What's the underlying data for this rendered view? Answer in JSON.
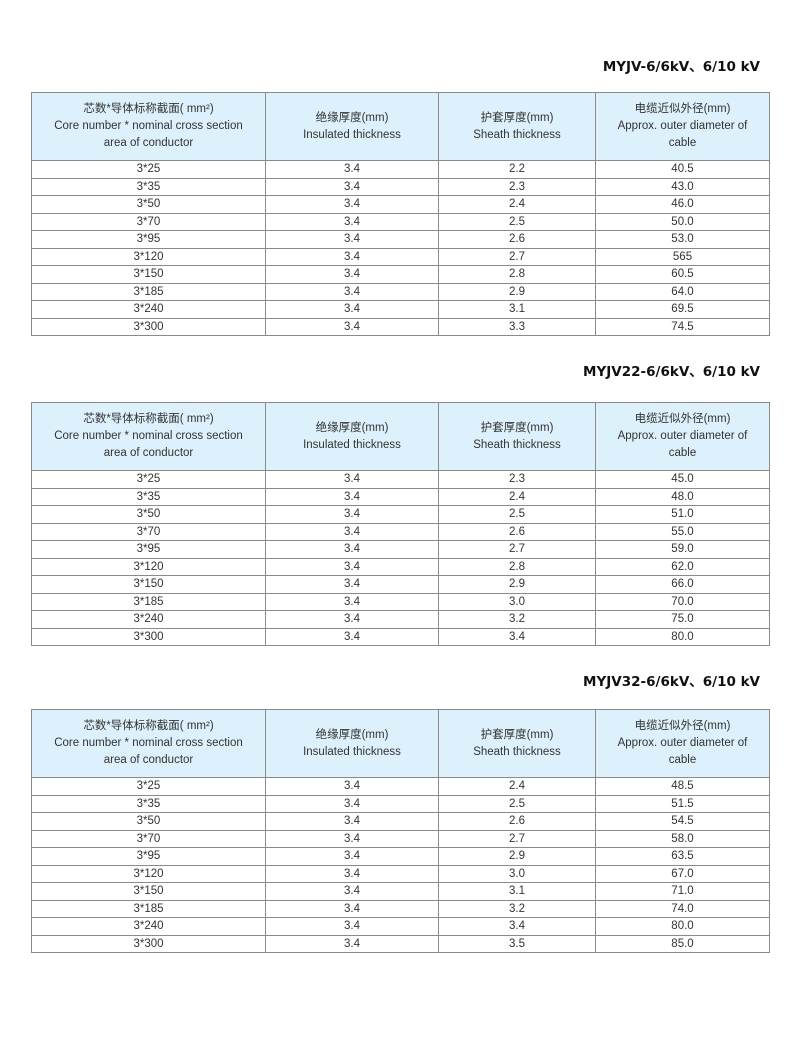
{
  "header_cells": [
    [
      "芯数*导体标称截面( mm²)",
      "Core number * nominal cross section",
      "area of conductor"
    ],
    [
      "绝缘厚度(mm)",
      "Insulated thickness"
    ],
    [
      "护套厚度(mm)",
      "Sheath thickness"
    ],
    [
      "电缆近似外径(mm)",
      "Approx. outer diameter of",
      "cable"
    ]
  ],
  "tables": [
    {
      "title": "MYJV-6/6kV、6/10 kV",
      "rows": [
        [
          "3*25",
          "3.4",
          "2.2",
          "40.5"
        ],
        [
          "3*35",
          "3.4",
          "2.3",
          "43.0"
        ],
        [
          "3*50",
          "3.4",
          "2.4",
          "46.0"
        ],
        [
          "3*70",
          "3.4",
          "2.5",
          "50.0"
        ],
        [
          "3*95",
          "3.4",
          "2.6",
          "53.0"
        ],
        [
          "3*120",
          "3.4",
          "2.7",
          "565"
        ],
        [
          "3*150",
          "3.4",
          "2.8",
          "60.5"
        ],
        [
          "3*185",
          "3.4",
          "2.9",
          "64.0"
        ],
        [
          "3*240",
          "3.4",
          "3.1",
          "69.5"
        ],
        [
          "3*300",
          "3.4",
          "3.3",
          "74.5"
        ]
      ]
    },
    {
      "title": "MYJV22-6/6kV、6/10 kV",
      "rows": [
        [
          "3*25",
          "3.4",
          "2.3",
          "45.0"
        ],
        [
          "3*35",
          "3.4",
          "2.4",
          "48.0"
        ],
        [
          "3*50",
          "3.4",
          "2.5",
          "51.0"
        ],
        [
          "3*70",
          "3.4",
          "2.6",
          "55.0"
        ],
        [
          "3*95",
          "3.4",
          "2.7",
          "59.0"
        ],
        [
          "3*120",
          "3.4",
          "2.8",
          "62.0"
        ],
        [
          "3*150",
          "3.4",
          "2.9",
          "66.0"
        ],
        [
          "3*185",
          "3.4",
          "3.0",
          "70.0"
        ],
        [
          "3*240",
          "3.4",
          "3.2",
          "75.0"
        ],
        [
          "3*300",
          "3.4",
          "3.4",
          "80.0"
        ]
      ]
    },
    {
      "title": "MYJV32-6/6kV、6/10 kV",
      "rows": [
        [
          "3*25",
          "3.4",
          "2.4",
          "48.5"
        ],
        [
          "3*35",
          "3.4",
          "2.5",
          "51.5"
        ],
        [
          "3*50",
          "3.4",
          "2.6",
          "54.5"
        ],
        [
          "3*70",
          "3.4",
          "2.7",
          "58.0"
        ],
        [
          "3*95",
          "3.4",
          "2.9",
          "63.5"
        ],
        [
          "3*120",
          "3.4",
          "3.0",
          "67.0"
        ],
        [
          "3*150",
          "3.4",
          "3.1",
          "71.0"
        ],
        [
          "3*185",
          "3.4",
          "3.2",
          "74.0"
        ],
        [
          "3*240",
          "3.4",
          "3.4",
          "80.0"
        ],
        [
          "3*300",
          "3.4",
          "3.5",
          "85.0"
        ]
      ]
    }
  ],
  "colors": {
    "header_bg": "#ddf1fc",
    "border": "#8a8a8a"
  }
}
